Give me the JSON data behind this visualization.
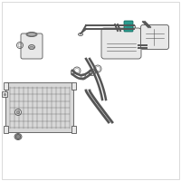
{
  "background_color": "#ffffff",
  "border_color": "#cccccc",
  "highlight_color": "#2a9d8f",
  "line_color": "#555555",
  "fill_color": "#e8e8e8",
  "fig_width": 2.0,
  "fig_height": 2.0,
  "dpi": 100
}
